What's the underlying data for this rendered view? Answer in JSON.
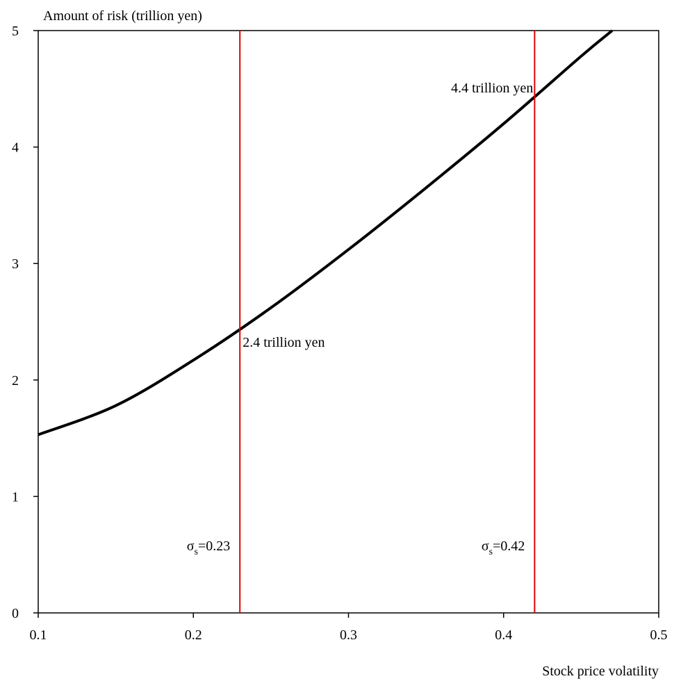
{
  "chart_data": {
    "type": "line",
    "y_label": "Amount of risk (trillion yen)",
    "x_label": "Stock price volatility",
    "x": [
      0.1,
      0.15,
      0.2,
      0.25,
      0.3,
      0.35,
      0.4,
      0.45,
      0.47
    ],
    "series": [
      {
        "color": "#000000",
        "values": [
          1.53,
          1.78,
          2.17,
          2.62,
          3.12,
          3.65,
          4.2,
          4.78,
          5.0
        ]
      }
    ],
    "xlim": [
      0.1,
      0.5
    ],
    "xticks": [
      0.1,
      0.2,
      0.3,
      0.4,
      0.5
    ],
    "ylim": [
      0,
      5
    ],
    "yticks": [
      0,
      1,
      2,
      3,
      4,
      5
    ],
    "vlines": [
      {
        "x": 0.23,
        "color": "#e00000",
        "symbol": "σ",
        "subscript": "s",
        "rest": "=0.23",
        "risk_label": "2.4 trillion yen"
      },
      {
        "x": 0.42,
        "color": "#e00000",
        "symbol": "σ",
        "subscript": "s",
        "rest": "=0.42",
        "risk_label": "4.4 trillion yen"
      }
    ]
  }
}
